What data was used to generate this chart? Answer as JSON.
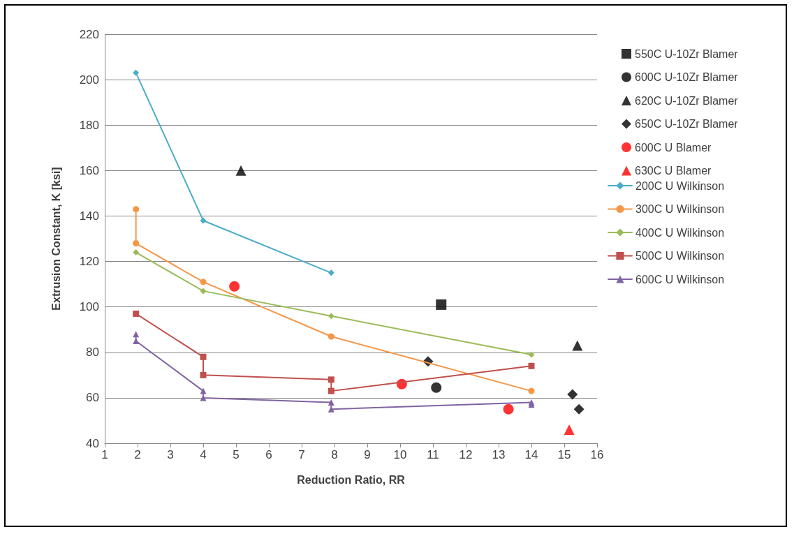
{
  "chart_data": {
    "type": "scatter",
    "xlabel": "Reduction Ratio, RR",
    "ylabel": "Extrusion Constant, K [ksi]",
    "xlim": [
      1,
      16
    ],
    "xticks": [
      1,
      2,
      3,
      4,
      5,
      6,
      7,
      8,
      9,
      10,
      11,
      12,
      13,
      14,
      15,
      16
    ],
    "ylim": [
      40,
      220
    ],
    "yticks": [
      40,
      60,
      80,
      100,
      120,
      140,
      160,
      180,
      200,
      220
    ],
    "grid": "y",
    "legend": "right",
    "series": [
      {
        "name": "550C U-10Zr Blamer",
        "marker": "square",
        "color": "#000000",
        "x": [
          11.25
        ],
        "values": [
          101
        ]
      },
      {
        "name": "600C U-10Zr Blamer",
        "marker": "circle",
        "color": "#000000",
        "x": [
          11.1
        ],
        "values": [
          64.5
        ]
      },
      {
        "name": "620C U-10Zr Blamer",
        "marker": "triangle",
        "color": "#000000",
        "x": [
          5.15,
          15.4
        ],
        "values": [
          160,
          83
        ]
      },
      {
        "name": "650C U-10Zr Blamer",
        "marker": "diamond",
        "color": "#000000",
        "x": [
          10.85,
          15.25,
          15.45
        ],
        "values": [
          76,
          61.5,
          55
        ]
      },
      {
        "name": "600C U Blamer",
        "marker": "circle",
        "color": "#ff0000",
        "x": [
          4.95,
          10.05,
          13.3
        ],
        "values": [
          109,
          66,
          55
        ]
      },
      {
        "name": "630C U Blamer",
        "marker": "triangle",
        "color": "#ff0000",
        "x": [
          15.15
        ],
        "values": [
          46
        ]
      },
      {
        "name": "200C U Wilkinson",
        "type": "line",
        "marker": "diamond",
        "color": "#4bacc6",
        "x": [
          1.95,
          4,
          7.9
        ],
        "values": [
          203,
          138,
          115
        ]
      },
      {
        "name": "300C U Wilkinson",
        "type": "line",
        "marker": "circle",
        "color": "#f79646",
        "x": [
          1.95,
          1.95,
          4,
          7.9,
          14
        ],
        "values": [
          143,
          128,
          111,
          87,
          63
        ]
      },
      {
        "name": "400C U Wilkinson",
        "type": "line",
        "marker": "diamond",
        "color": "#9bbb59",
        "x": [
          1.95,
          4,
          7.9,
          14
        ],
        "values": [
          124,
          107,
          96,
          79
        ]
      },
      {
        "name": "500C U Wilkinson",
        "type": "line",
        "marker": "square",
        "color": "#c0504d",
        "x": [
          1.95,
          4,
          4,
          7.9,
          7.9,
          14
        ],
        "values": [
          97,
          78,
          70,
          68,
          63,
          74
        ]
      },
      {
        "name": "600C U Wilkinson",
        "type": "line",
        "marker": "triangle",
        "color": "#8064a2",
        "x": [
          1.95,
          1.95,
          4,
          4,
          7.9,
          7.9,
          14,
          14
        ],
        "values": [
          88,
          85,
          63,
          60,
          58,
          55,
          58,
          57
        ]
      }
    ]
  }
}
